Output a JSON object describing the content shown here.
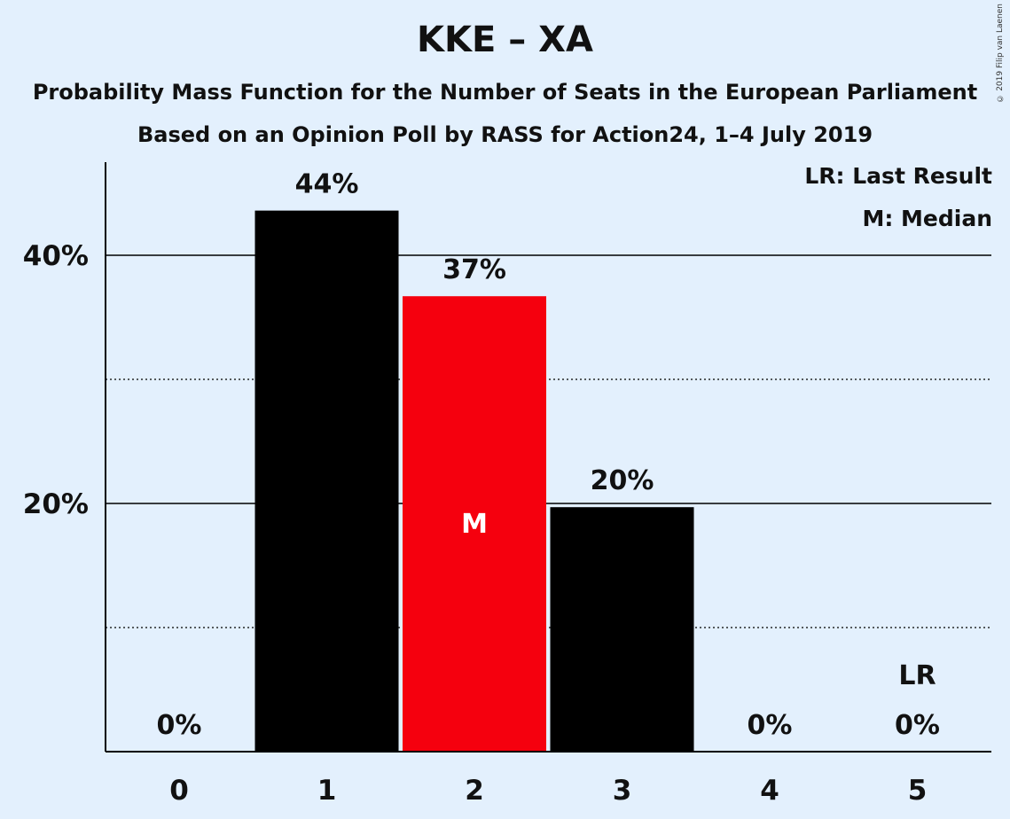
{
  "title": "KKE – XA",
  "subtitle_1": "Probability Mass Function for the Number of Seats in the European Parliament",
  "subtitle_2": "Based on an Opinion Poll by RASS for Action24, 1–4 July 2019",
  "copyright": "© 2019 Filip van Laenen",
  "legend": {
    "last_result": "LR: Last Result",
    "median": "M: Median"
  },
  "colors": {
    "background": "#e3f0fd",
    "bar": "#000000",
    "median_bar": "#f5000e"
  },
  "chart_data": {
    "type": "bar",
    "categories": [
      "0",
      "1",
      "2",
      "3",
      "4",
      "5"
    ],
    "values": [
      0,
      43.6,
      36.7,
      19.7,
      0,
      0
    ],
    "data_labels": [
      "0%",
      "44%",
      "37%",
      "20%",
      "0%",
      "0%"
    ],
    "y_ticks": [
      {
        "value": 20,
        "label": "20%"
      },
      {
        "value": 40,
        "label": "40%"
      }
    ],
    "minor_gridlines": [
      10,
      30
    ],
    "ylim": [
      0,
      47.5
    ],
    "median_index": 2,
    "median_marker": "M",
    "last_result_index": 5,
    "last_result_marker": "LR"
  }
}
